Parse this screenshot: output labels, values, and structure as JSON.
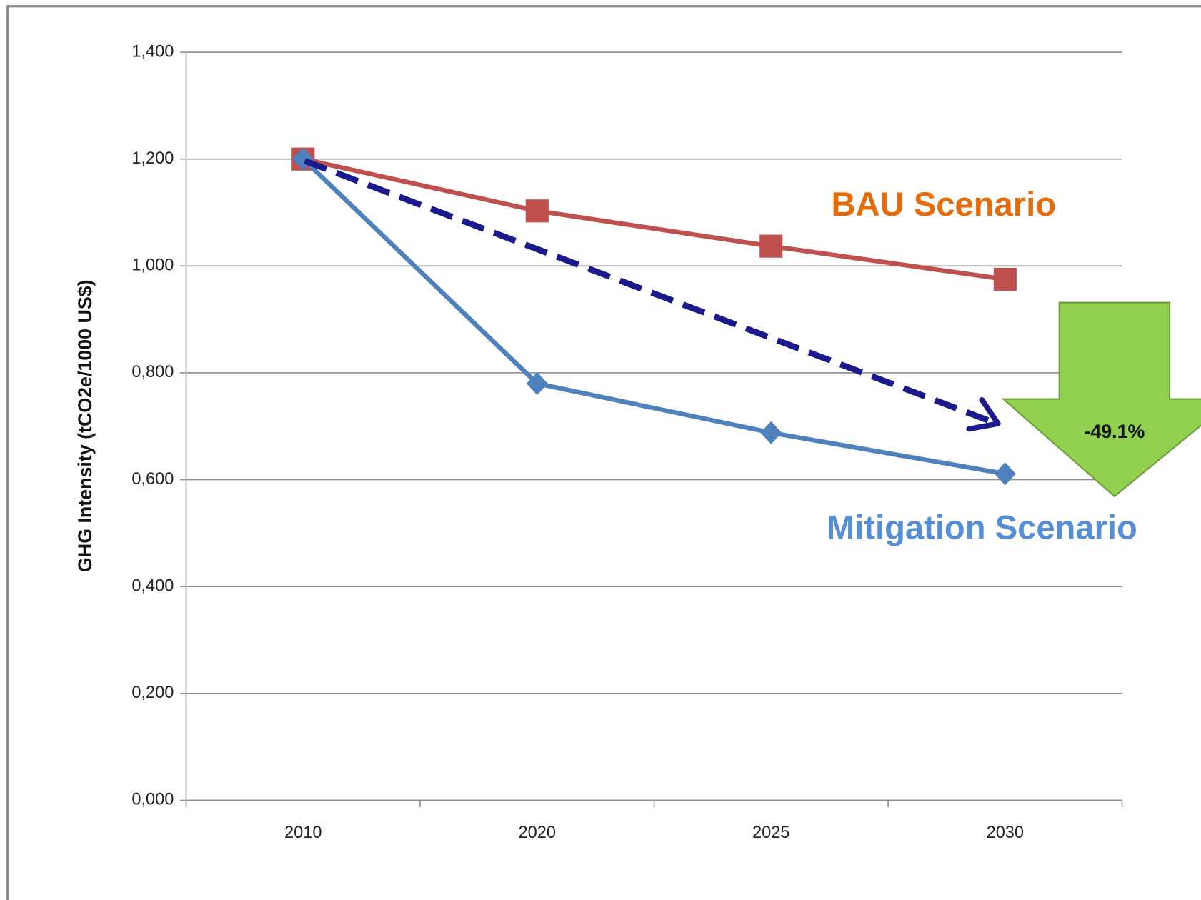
{
  "chart_data": {
    "type": "line",
    "y_label": "GHG Intensity (tCO2e/1000 US$)",
    "categories": [
      "2010",
      "2020",
      "2025",
      "2030"
    ],
    "series": [
      {
        "name": "BAU Scenario",
        "color": "#c0504d",
        "label_color": "#e46c0a",
        "marker": "square",
        "values": [
          1.2,
          1.103,
          1.037,
          0.975
        ]
      },
      {
        "name": "Mitigation Scenario",
        "color": "#4f81bd",
        "label_color": "#558ed5",
        "marker": "diamond",
        "values": [
          1.2,
          0.78,
          0.688,
          0.611
        ]
      }
    ],
    "annotations": [
      "-49.1%"
    ],
    "ylim": [
      0,
      1.4
    ],
    "yticks": [
      {
        "value": 0,
        "label": "0,000"
      },
      {
        "value": 0.2,
        "label": "0,200"
      },
      {
        "value": 0.4,
        "label": "0,400"
      },
      {
        "value": 0.6,
        "label": "0,600"
      },
      {
        "value": 0.8,
        "label": "0,800"
      },
      {
        "value": 1.0,
        "label": "1,000"
      },
      {
        "value": 1.2,
        "label": "1,200"
      },
      {
        "value": 1.4,
        "label": "1,400"
      }
    ],
    "grid": true
  }
}
